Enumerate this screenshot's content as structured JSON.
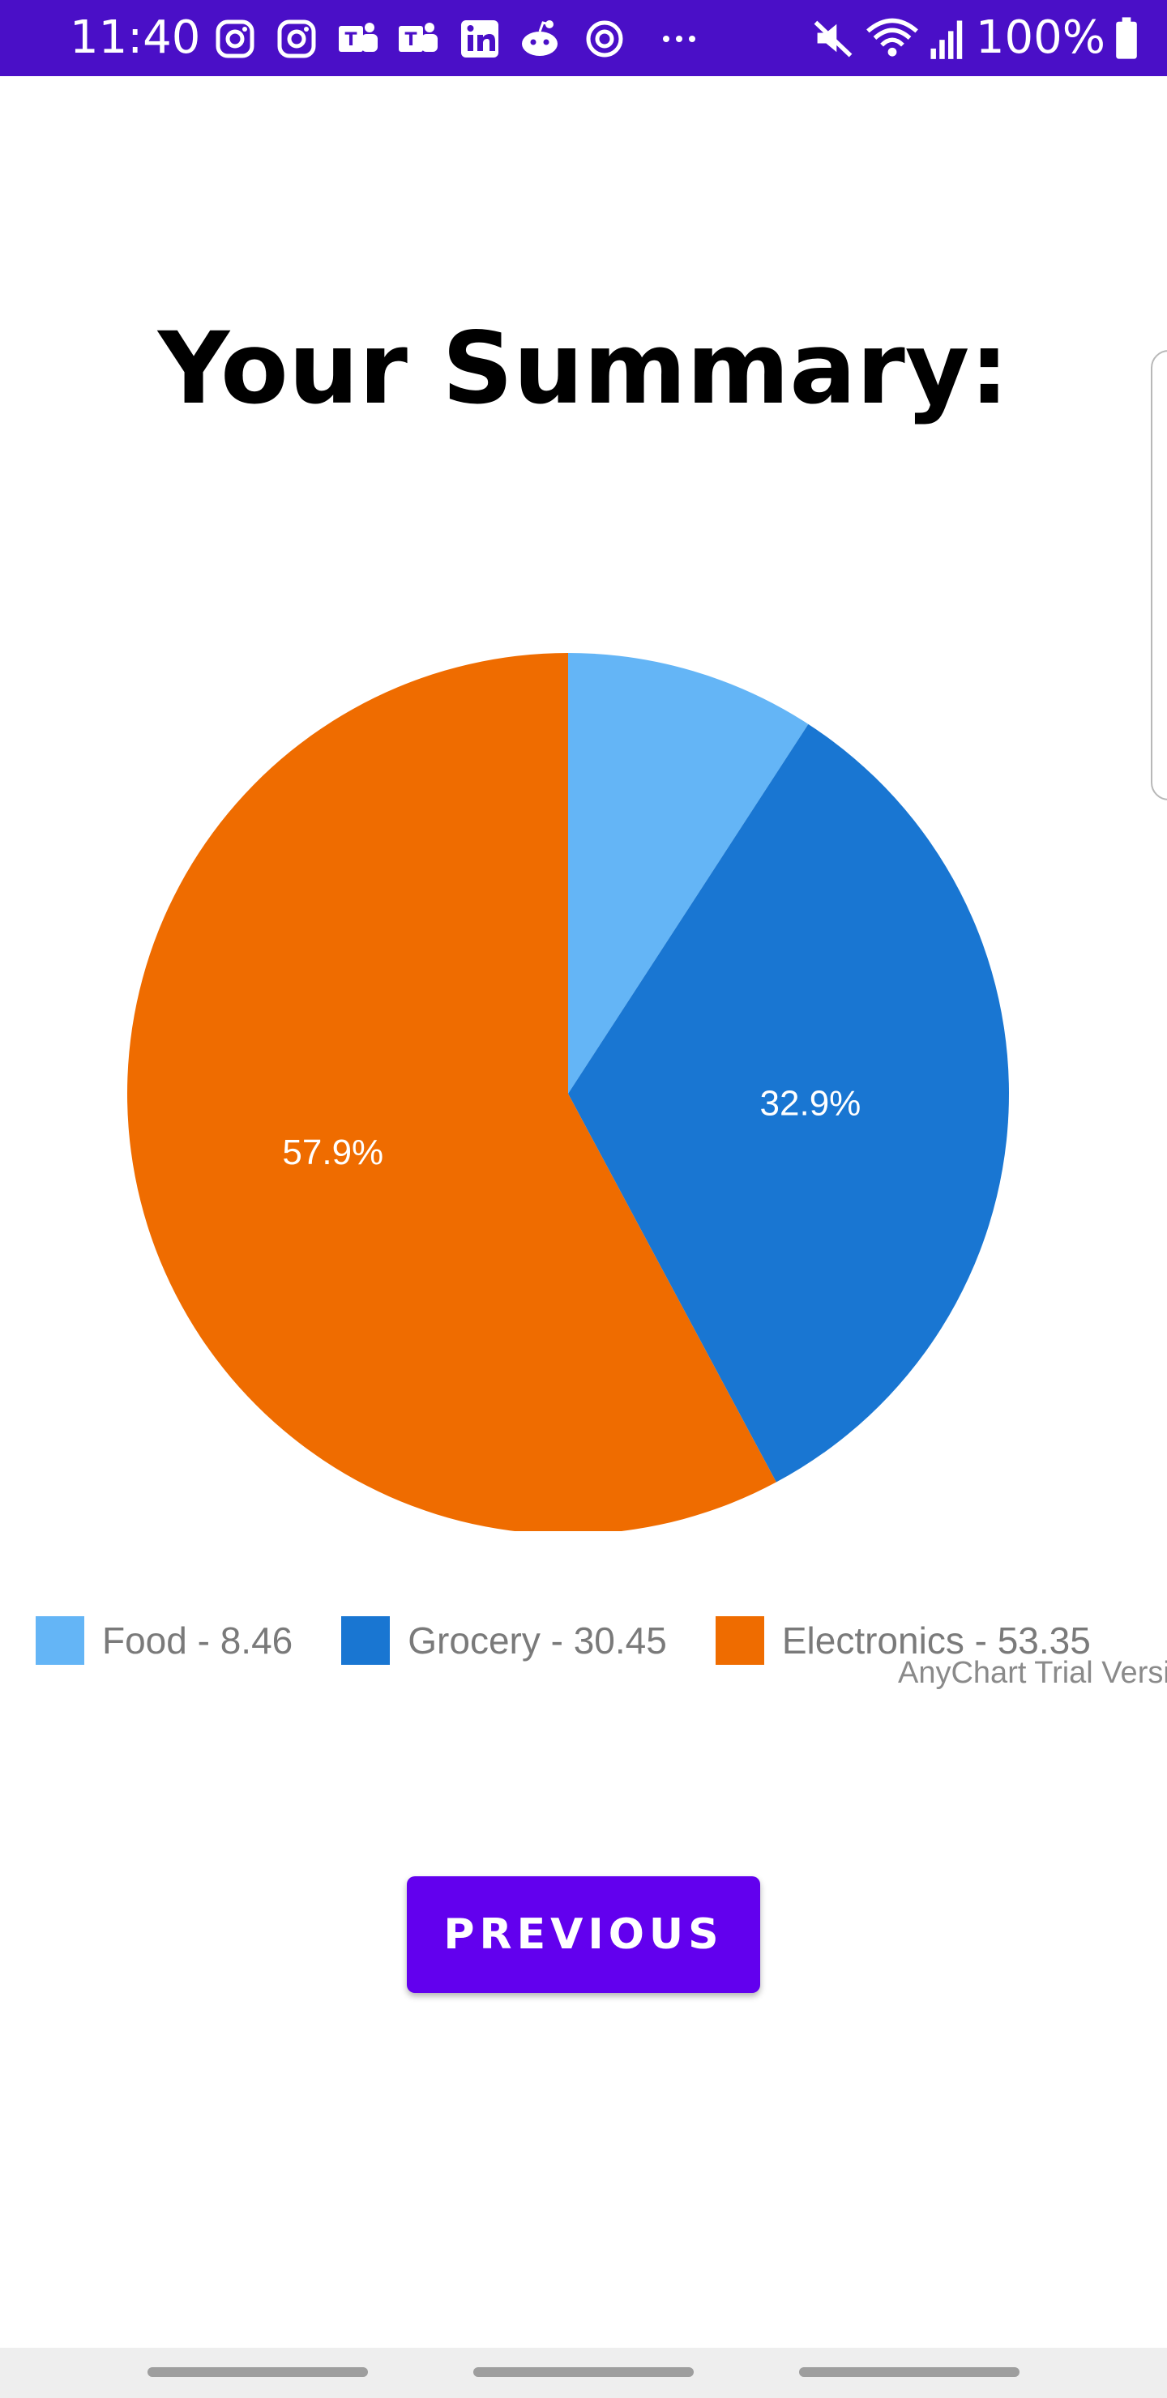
{
  "status_bar": {
    "time": "11:40",
    "battery": "100%",
    "notification_icons": [
      "instagram-icon",
      "instagram-icon",
      "teams-icon",
      "teams-icon",
      "linkedin-icon",
      "reddit-icon",
      "sync-icon",
      "more-dots-icon"
    ],
    "system_icons": [
      "mute-icon",
      "wifi-icon",
      "signal-icon",
      "battery-icon"
    ],
    "background": "#4a0fc7"
  },
  "page": {
    "title": "Your Summary:"
  },
  "chart_data": {
    "type": "pie",
    "title": "",
    "categories": [
      "Food",
      "Grocery",
      "Electronics"
    ],
    "values": [
      8.46,
      30.45,
      53.35
    ],
    "legend_labels": [
      "Food - 8.46",
      "Grocery - 30.45",
      "Electronics - 53.35"
    ],
    "slice_labels": [
      "",
      "32.9%",
      "57.9%"
    ],
    "colors": [
      "#64b5f6",
      "#1976d2",
      "#ef6c00"
    ],
    "legend_position": "bottom",
    "credits": "AnyChart Trial Version"
  },
  "actions": {
    "previous_label": "PREVIOUS"
  }
}
